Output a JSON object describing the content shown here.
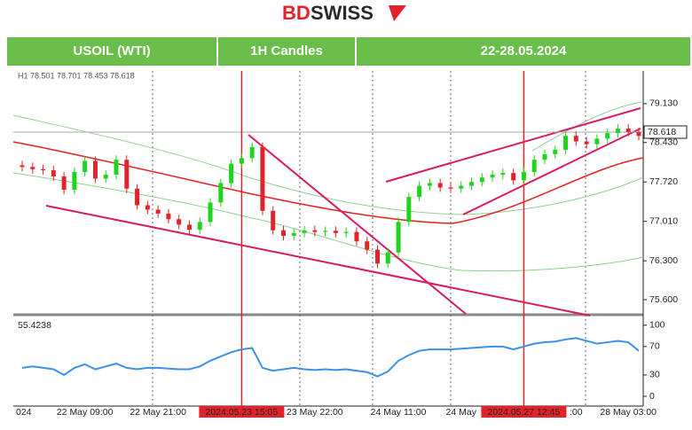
{
  "header": {
    "logo_bd": "BD",
    "logo_rest": "SWISS",
    "tabs": [
      "USOIL (WTI)",
      "1H Candles",
      "22-28.05.2024"
    ]
  },
  "chart_data": {
    "type": "candlestick",
    "info": "H1 78.501 78.701 78.453 78.618",
    "categories": [
      "024",
      null,
      null,
      null,
      null,
      null,
      "22 May 09:00",
      null,
      null,
      null,
      null,
      null,
      null,
      "22 May 21:00",
      null,
      null,
      null,
      null,
      null,
      null,
      null,
      "2024.05.23 15:05",
      null,
      null,
      null,
      null,
      null,
      null,
      "23 May 22:00",
      null,
      null,
      null,
      null,
      null,
      null,
      null,
      "24 May 11:00",
      null,
      null,
      null,
      null,
      null,
      "24 May",
      null,
      null,
      null,
      null,
      null,
      "2024.05.27 12:45",
      null,
      null,
      null,
      null,
      ":00",
      null,
      null,
      null,
      null,
      "28 May 03:00",
      null
    ],
    "highlight": [
      21,
      48
    ],
    "open": [
      78.02,
      77.99,
      77.95,
      77.93,
      77.82,
      77.58,
      77.9,
      78.1,
      77.78,
      77.85,
      78.12,
      77.6,
      77.3,
      77.22,
      77.15,
      77.05,
      76.95,
      76.86,
      77.0,
      77.35,
      77.7,
      78.05,
      78.15,
      78.35,
      77.2,
      76.85,
      76.75,
      76.8,
      76.85,
      76.82,
      76.84,
      76.8,
      76.82,
      76.65,
      76.5,
      76.25,
      76.45,
      77.0,
      77.45,
      77.65,
      77.7,
      77.62,
      77.6,
      77.65,
      77.72,
      77.8,
      77.85,
      77.88,
      77.75,
      77.9,
      78.12,
      78.22,
      78.3,
      78.55,
      78.45,
      78.4,
      78.5,
      78.6,
      78.68,
      78.62
    ],
    "high": [
      78.1,
      78.07,
      78.03,
      78.01,
      77.9,
      77.98,
      78.18,
      78.18,
      77.93,
      78.2,
      78.2,
      77.68,
      77.38,
      77.3,
      77.23,
      77.13,
      77.03,
      77.08,
      77.43,
      77.78,
      78.13,
      78.23,
      78.43,
      78.43,
      77.28,
      76.93,
      76.88,
      76.93,
      76.93,
      76.92,
      76.92,
      76.9,
      76.9,
      76.73,
      76.58,
      76.53,
      77.08,
      77.53,
      77.73,
      77.78,
      77.78,
      77.7,
      77.73,
      77.8,
      77.88,
      77.93,
      77.96,
      77.96,
      77.98,
      78.2,
      78.3,
      78.38,
      78.63,
      78.63,
      78.53,
      78.58,
      78.68,
      78.76,
      78.76,
      78.7
    ],
    "low": [
      77.91,
      77.87,
      77.85,
      77.74,
      77.5,
      77.5,
      77.82,
      77.7,
      77.7,
      77.77,
      77.52,
      77.22,
      77.14,
      77.07,
      76.97,
      76.87,
      76.78,
      76.78,
      76.92,
      77.27,
      77.62,
      77.97,
      78.07,
      77.12,
      76.77,
      76.67,
      76.67,
      76.72,
      76.74,
      76.74,
      76.72,
      76.72,
      76.57,
      76.42,
      76.17,
      76.17,
      76.37,
      76.92,
      77.37,
      77.57,
      77.54,
      77.52,
      77.52,
      77.57,
      77.64,
      77.72,
      77.77,
      77.67,
      77.67,
      77.82,
      78.04,
      78.14,
      78.22,
      78.37,
      78.32,
      78.32,
      78.42,
      78.52,
      78.54,
      78.47
    ],
    "close": [
      77.99,
      77.95,
      77.93,
      77.82,
      77.58,
      77.9,
      78.1,
      77.78,
      77.85,
      78.12,
      77.6,
      77.3,
      77.22,
      77.15,
      77.05,
      76.95,
      76.86,
      77.0,
      77.35,
      77.7,
      78.05,
      78.15,
      78.35,
      77.2,
      76.85,
      76.75,
      76.8,
      76.85,
      76.82,
      76.84,
      76.8,
      76.82,
      76.65,
      76.5,
      76.25,
      76.45,
      77.0,
      77.45,
      77.65,
      77.7,
      77.62,
      77.6,
      77.65,
      77.72,
      77.8,
      77.85,
      77.88,
      77.75,
      77.9,
      78.12,
      78.22,
      78.3,
      78.55,
      78.45,
      78.4,
      78.5,
      78.6,
      78.68,
      78.62,
      78.55
    ],
    "up_color": "#1ed41e",
    "down_color": "#e3232b",
    "ylim": [
      75.36,
      79.64
    ],
    "yticks": [
      {
        "value": 79.13,
        "label": "79.130"
      },
      {
        "value": 78.43,
        "label": "78.430"
      },
      {
        "value": 77.72,
        "label": "77.720"
      },
      {
        "value": 77.01,
        "label": "77.010"
      },
      {
        "value": 76.3,
        "label": "76.300"
      },
      {
        "value": 75.6,
        "label": "75.600"
      }
    ],
    "last_price": {
      "value": 78.618,
      "label": "78.618"
    },
    "rsi": {
      "label": "55.4238",
      "color": "#3d8fe8",
      "values": [
        40,
        42,
        40,
        38,
        30,
        40,
        45,
        38,
        42,
        46,
        40,
        38,
        40,
        40,
        39,
        38,
        38,
        42,
        50,
        56,
        62,
        66,
        68,
        40,
        36,
        38,
        40,
        38,
        37,
        38,
        37,
        38,
        36,
        34,
        28,
        35,
        50,
        58,
        64,
        66,
        66,
        66,
        67,
        68,
        69,
        70,
        70,
        66,
        70,
        74,
        76,
        77,
        80,
        82,
        78,
        74,
        76,
        78,
        76,
        64
      ],
      "ylim": [
        -10,
        111
      ],
      "yticks": [
        100,
        70,
        30,
        0
      ]
    }
  }
}
